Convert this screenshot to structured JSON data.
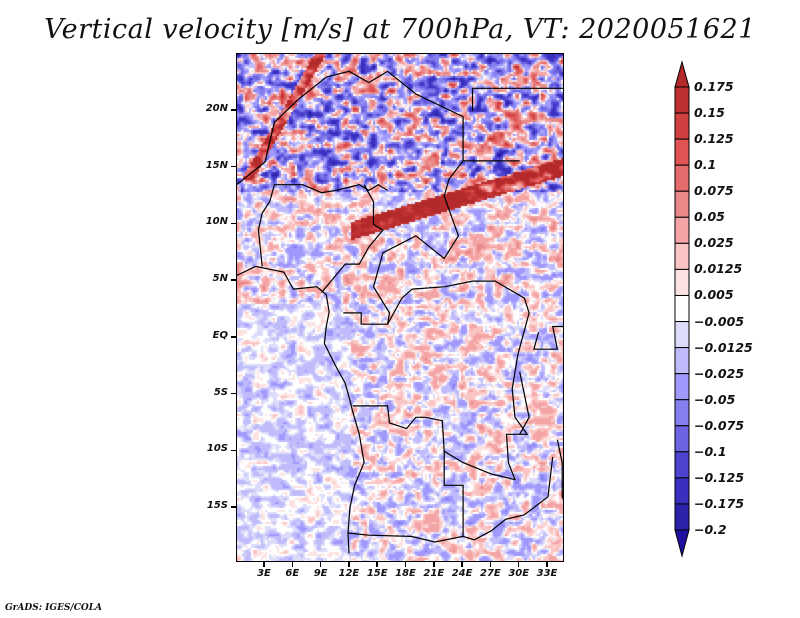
{
  "title": "Vertical velocity [m/s] at 700hPa, VT: 2020051621",
  "footer": "GrADS: IGES/COLA",
  "chart_data": {
    "type": "heatmap",
    "title": "Vertical velocity [m/s] at 700hPa, VT: 2020051621",
    "variable": "Vertical velocity",
    "units": "m/s",
    "level": "700hPa",
    "valid_time": "2020051621",
    "projection": "lat-lon",
    "lon_range_deg": [
      0,
      35
    ],
    "lat_range_deg": [
      -19,
      25
    ],
    "xlabel": "",
    "ylabel": "",
    "x_ticks": [
      "3E",
      "6E",
      "9E",
      "12E",
      "15E",
      "18E",
      "21E",
      "24E",
      "27E",
      "30E",
      "33E"
    ],
    "x_tick_values": [
      3,
      6,
      9,
      12,
      15,
      18,
      21,
      24,
      27,
      30,
      33
    ],
    "y_ticks": [
      "20N",
      "15N",
      "10N",
      "5N",
      "EQ",
      "5S",
      "10S",
      "15S"
    ],
    "y_tick_values": [
      20,
      15,
      10,
      5,
      0,
      -5,
      -10,
      -15
    ],
    "colorbar": {
      "orientation": "vertical",
      "placement": "right",
      "extend": "both",
      "labels": [
        "0.175",
        "0.15",
        "0.125",
        "0.1",
        "0.075",
        "0.05",
        "0.025",
        "0.0125",
        "0.005",
        "−0.005",
        "−0.0125",
        "−0.025",
        "−0.05",
        "−0.075",
        "−0.1",
        "−0.125",
        "−0.175",
        "−0.2"
      ],
      "levels": [
        0.175,
        0.15,
        0.125,
        0.1,
        0.075,
        0.05,
        0.025,
        0.0125,
        0.005,
        -0.005,
        -0.0125,
        -0.025,
        -0.05,
        -0.075,
        -0.1,
        -0.125,
        -0.175,
        -0.2
      ],
      "colors_top_to_bottom": [
        "#b42a2a",
        "#bf3030",
        "#d04040",
        "#e05454",
        "#e46c6c",
        "#e88888",
        "#f4a4a4",
        "#fbc4c4",
        "#fde2e2",
        "#ffffff",
        "#dcdcfa",
        "#c0bcfc",
        "#a098fc",
        "#8480f0",
        "#6c64e0",
        "#4c44d0",
        "#3a30c0",
        "#2a22a8",
        "#2010a0"
      ]
    },
    "notable_features": [
      "Strong upward-motion band (red) across Chad/Sudan near 10-13N",
      "Mixed red/blue cellular pattern over Sahara north of 15N",
      "Weak descending (light blue) motion over Gulf of Guinea / South Atlantic",
      "Mixed cellular pattern over Angola, Zambia, DR Congo"
    ]
  }
}
